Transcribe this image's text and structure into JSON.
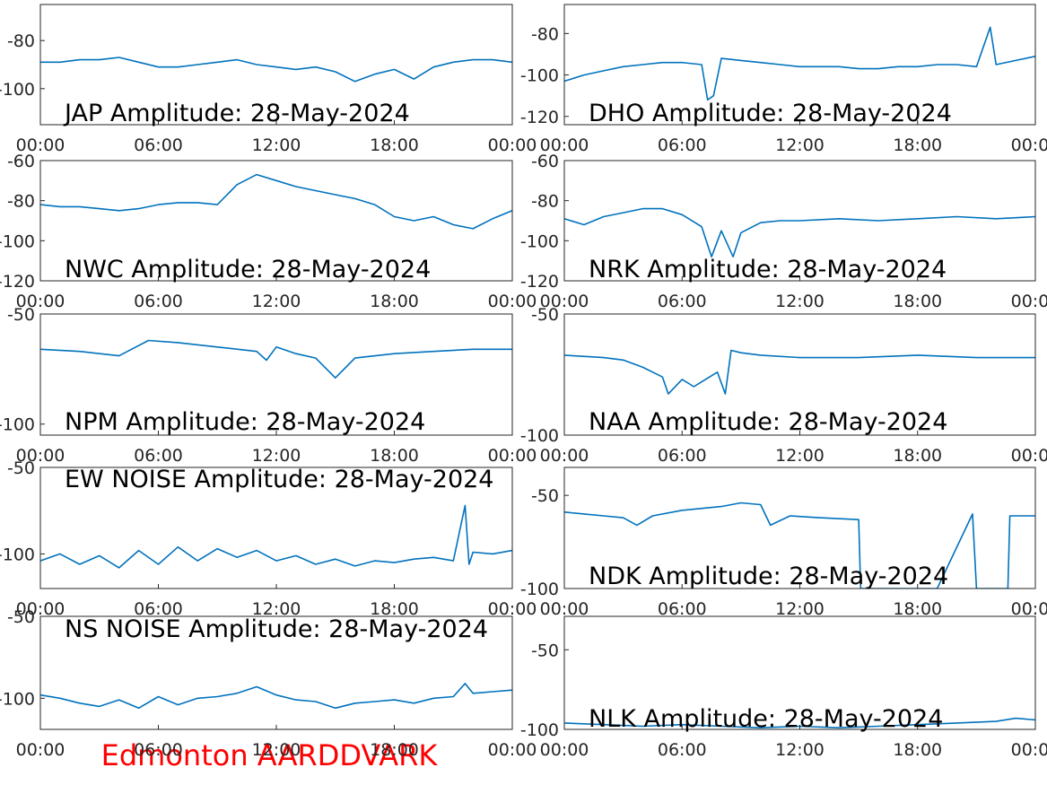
{
  "chart_data": [
    {
      "type": "line",
      "title": "JAP Amplitude: 28-May-2024",
      "color": "#0072bd",
      "xlim": [
        0,
        24
      ],
      "xticks": [
        {
          "value": 0,
          "label": "00:00"
        },
        {
          "value": 6,
          "label": "06:00"
        },
        {
          "value": 12,
          "label": "12:00"
        },
        {
          "value": 18,
          "label": "18:00"
        },
        {
          "value": 24,
          "label": "00:00"
        }
      ],
      "ylim": [
        -115,
        -65
      ],
      "yticks": [
        -80,
        -100
      ],
      "x": [
        0,
        1,
        2,
        3,
        4,
        5,
        6,
        7,
        8,
        9,
        10,
        11,
        12,
        13,
        14,
        15,
        16,
        17,
        18,
        19,
        20,
        21,
        22,
        23,
        24
      ],
      "values": [
        -89,
        -89,
        -88,
        -88,
        -87,
        -89,
        -91,
        -91,
        -90,
        -89,
        -88,
        -90,
        -91,
        -92,
        -91,
        -93,
        -97,
        -94,
        -92,
        -96,
        -91,
        -89,
        -88,
        -88,
        -89
      ]
    },
    {
      "type": "line",
      "title": "DHO Amplitude: 28-May-2024",
      "color": "#0072bd",
      "xlim": [
        0,
        24
      ],
      "xticks": [
        {
          "value": 0,
          "label": "00:00"
        },
        {
          "value": 6,
          "label": "06:00"
        },
        {
          "value": 12,
          "label": "12:00"
        },
        {
          "value": 18,
          "label": "18:00"
        },
        {
          "value": 24,
          "label": "00:00"
        }
      ],
      "ylim": [
        -124,
        -66
      ],
      "yticks": [
        -80,
        -100,
        -120
      ],
      "x": [
        0,
        1,
        2,
        3,
        4,
        5,
        6,
        7,
        7.3,
        7.6,
        8,
        9,
        10,
        11,
        12,
        13,
        14,
        15,
        16,
        17,
        18,
        19,
        20,
        21,
        21.7,
        22,
        23,
        24
      ],
      "values": [
        -103,
        -100,
        -98,
        -96,
        -95,
        -94,
        -94,
        -95,
        -112,
        -110,
        -92,
        -93,
        -94,
        -95,
        -96,
        -96,
        -96,
        -97,
        -97,
        -96,
        -96,
        -95,
        -95,
        -96,
        -77,
        -95,
        -93,
        -91
      ]
    },
    {
      "type": "line",
      "title": "NWC Amplitude: 28-May-2024",
      "color": "#0072bd",
      "xlim": [
        0,
        24
      ],
      "xticks": [
        {
          "value": 0,
          "label": "00:00"
        },
        {
          "value": 6,
          "label": "06:00"
        },
        {
          "value": 12,
          "label": "12:00"
        },
        {
          "value": 18,
          "label": "18:00"
        },
        {
          "value": 24,
          "label": "00:00"
        }
      ],
      "ylim": [
        -120,
        -60
      ],
      "yticks": [
        -60,
        -80,
        -100,
        -120
      ],
      "x": [
        0,
        1,
        2,
        3,
        4,
        5,
        6,
        7,
        8,
        9,
        10,
        11,
        12,
        13,
        14,
        15,
        16,
        17,
        18,
        19,
        20,
        21,
        22,
        23,
        24
      ],
      "values": [
        -82,
        -83,
        -83,
        -84,
        -85,
        -84,
        -82,
        -81,
        -81,
        -82,
        -72,
        -67,
        -70,
        -73,
        -75,
        -77,
        -79,
        -82,
        -88,
        -90,
        -88,
        -92,
        -94,
        -89,
        -85
      ]
    },
    {
      "type": "line",
      "title": "NRK Amplitude: 28-May-2024",
      "color": "#0072bd",
      "xlim": [
        0,
        24
      ],
      "xticks": [
        {
          "value": 0,
          "label": "00:00"
        },
        {
          "value": 6,
          "label": "06:00"
        },
        {
          "value": 12,
          "label": "12:00"
        },
        {
          "value": 18,
          "label": "18:00"
        },
        {
          "value": 24,
          "label": "00:00"
        }
      ],
      "ylim": [
        -120,
        -60
      ],
      "yticks": [
        -60,
        -80,
        -100,
        -120
      ],
      "x": [
        0,
        1,
        2,
        3,
        4,
        5,
        6,
        7,
        7.5,
        8,
        8.6,
        9,
        10,
        11,
        12,
        14,
        16,
        18,
        20,
        22,
        24
      ],
      "values": [
        -89,
        -92,
        -88,
        -86,
        -84,
        -84,
        -87,
        -93,
        -108,
        -95,
        -108,
        -96,
        -91,
        -90,
        -90,
        -89,
        -90,
        -89,
        -88,
        -89,
        -88
      ]
    },
    {
      "type": "line",
      "title": "NPM Amplitude: 28-May-2024",
      "color": "#0072bd",
      "xlim": [
        0,
        24
      ],
      "xticks": [
        {
          "value": 0,
          "label": "00:00"
        },
        {
          "value": 6,
          "label": "06:00"
        },
        {
          "value": 12,
          "label": "12:00"
        },
        {
          "value": 18,
          "label": "18:00"
        },
        {
          "value": 24,
          "label": "00:00"
        }
      ],
      "ylim": [
        -105,
        -50
      ],
      "yticks": [
        -50,
        -100
      ],
      "x": [
        0,
        2,
        4,
        5.5,
        7,
        9,
        11,
        11.5,
        12,
        13,
        14,
        15,
        16,
        18,
        20,
        22,
        24
      ],
      "values": [
        -66,
        -67,
        -69,
        -62,
        -63,
        -65,
        -67,
        -71,
        -65,
        -68,
        -70,
        -79,
        -70,
        -68,
        -67,
        -66,
        -66
      ]
    },
    {
      "type": "line",
      "title": "NAA Amplitude: 28-May-2024",
      "color": "#0072bd",
      "xlim": [
        0,
        24
      ],
      "xticks": [
        {
          "value": 0,
          "label": "00:00"
        },
        {
          "value": 6,
          "label": "06:00"
        },
        {
          "value": 12,
          "label": "12:00"
        },
        {
          "value": 18,
          "label": "18:00"
        },
        {
          "value": 24,
          "label": "00:00"
        }
      ],
      "ylim": [
        -100,
        -50
      ],
      "yticks": [
        -50,
        -100
      ],
      "x": [
        0,
        2,
        3,
        4,
        5,
        5.3,
        6,
        6.6,
        7,
        7.8,
        8.2,
        8.5,
        9,
        10,
        12,
        15,
        18,
        21,
        24
      ],
      "values": [
        -67,
        -68,
        -69,
        -72,
        -76,
        -83,
        -77,
        -80,
        -78,
        -74,
        -83,
        -65,
        -66,
        -67,
        -68,
        -68,
        -67,
        -68,
        -68
      ]
    },
    {
      "type": "line",
      "title": "EW NOISE Amplitude: 28-May-2024",
      "color": "#0072bd",
      "xlim": [
        0,
        24
      ],
      "xticks": [
        {
          "value": 0,
          "label": "00:00"
        },
        {
          "value": 6,
          "label": "06:00"
        },
        {
          "value": 12,
          "label": "12:00"
        },
        {
          "value": 18,
          "label": "18:00"
        },
        {
          "value": 24,
          "label": "00:00"
        }
      ],
      "ylim": [
        -120,
        -50
      ],
      "yticks": [
        -50,
        -100
      ],
      "x": [
        0,
        1,
        2,
        3,
        4,
        5,
        6,
        7,
        8,
        9,
        10,
        11,
        12,
        13,
        14,
        15,
        16,
        17,
        18,
        19,
        20,
        21,
        21.6,
        21.8,
        22,
        23,
        24
      ],
      "values": [
        -104,
        -100,
        -106,
        -101,
        -108,
        -98,
        -106,
        -96,
        -104,
        -97,
        -102,
        -98,
        -104,
        -101,
        -106,
        -103,
        -107,
        -104,
        -105,
        -103,
        -102,
        -104,
        -72,
        -106,
        -99,
        -100,
        -98
      ]
    },
    {
      "type": "line",
      "title": "NDK Amplitude: 28-May-2024",
      "color": "#0072bd",
      "xlim": [
        0,
        24
      ],
      "xticks": [
        {
          "value": 0,
          "label": "00:00"
        },
        {
          "value": 6,
          "label": "06:00"
        },
        {
          "value": 12,
          "label": "12:00"
        },
        {
          "value": 18,
          "label": "18:00"
        },
        {
          "value": 24,
          "label": "00:00"
        }
      ],
      "ylim": [
        -100,
        -35
      ],
      "yticks": [
        -50,
        -100
      ],
      "x": [
        0,
        1,
        2,
        3,
        3.7,
        4.5,
        6,
        7,
        8,
        9,
        10,
        10.5,
        11.5,
        13,
        15,
        15.1,
        17,
        19,
        20.8,
        21,
        22.6,
        22.7,
        24
      ],
      "values": [
        -59,
        -60,
        -61,
        -62,
        -66,
        -61,
        -58,
        -57,
        -56,
        -54,
        -55,
        -66,
        -61,
        -62,
        -63,
        -100,
        -100,
        -100,
        -60,
        -100,
        -100,
        -61,
        -61
      ]
    },
    {
      "type": "line",
      "title": "NS NOISE Amplitude: 28-May-2024",
      "color": "#0072bd",
      "xlim": [
        0,
        24
      ],
      "xticks": [
        {
          "value": 0,
          "label": "00:00"
        },
        {
          "value": 6,
          "label": "06:00"
        },
        {
          "value": 12,
          "label": "12:00"
        },
        {
          "value": 18,
          "label": "18:00"
        },
        {
          "value": 24,
          "label": "00:00"
        }
      ],
      "ylim": [
        -119,
        -50
      ],
      "yticks": [
        -50,
        -100
      ],
      "x": [
        0,
        1,
        2,
        3,
        4,
        5,
        6,
        7,
        8,
        9,
        10,
        11,
        12,
        13,
        14,
        15,
        16,
        17,
        18,
        19,
        20,
        21,
        21.6,
        22,
        23,
        24
      ],
      "values": [
        -98,
        -100,
        -103,
        -105,
        -101,
        -106,
        -99,
        -104,
        -100,
        -99,
        -97,
        -93,
        -98,
        -101,
        -102,
        -106,
        -103,
        -102,
        -101,
        -103,
        -100,
        -99,
        -91,
        -97,
        -96,
        -95
      ]
    },
    {
      "type": "line",
      "title": "NLK Amplitude: 28-May-2024",
      "color": "#0072bd",
      "xlim": [
        0,
        24
      ],
      "xticks": [
        {
          "value": 0,
          "label": "00:00"
        },
        {
          "value": 6,
          "label": "06:00"
        },
        {
          "value": 12,
          "label": "12:00"
        },
        {
          "value": 18,
          "label": "18:00"
        },
        {
          "value": 24,
          "label": "00:00"
        }
      ],
      "ylim": [
        -100,
        -29
      ],
      "yticks": [
        -50,
        -100
      ],
      "x": [
        0,
        2,
        4,
        6,
        8,
        10,
        12,
        14,
        16,
        18,
        20,
        22,
        23,
        24
      ],
      "values": [
        -96,
        -97,
        -98,
        -97,
        -98,
        -99,
        -98,
        -99,
        -98,
        -97,
        -96,
        -95,
        -93,
        -94
      ]
    }
  ],
  "annotation": "Edmonton AARDDVARK"
}
